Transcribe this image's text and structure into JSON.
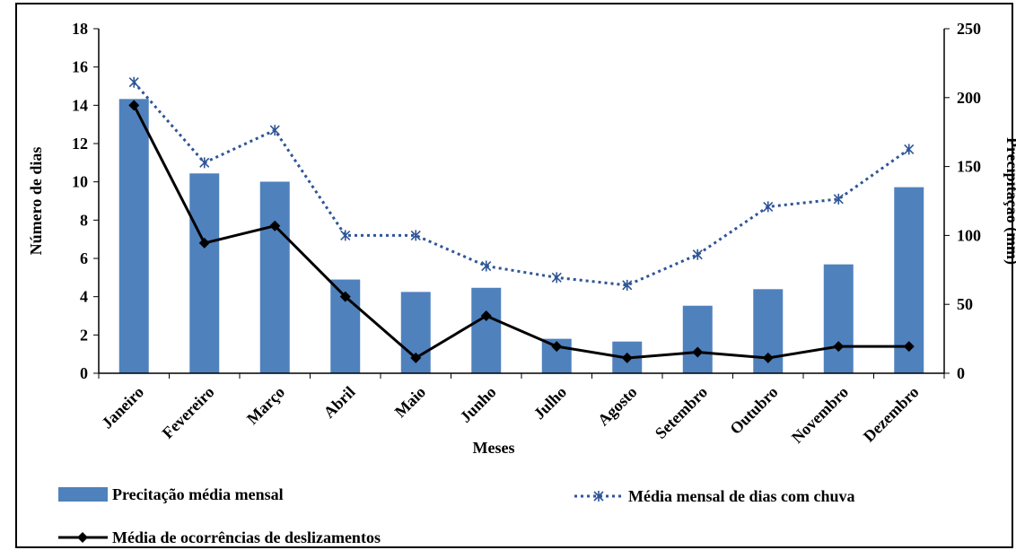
{
  "chart_data": {
    "type": "bar-line",
    "categories": [
      "Janeiro",
      "Fevereiro",
      "Março",
      "Abril",
      "Maio",
      "Junho",
      "Julho",
      "Agosto",
      "Setembro",
      "Outubro",
      "Novembro",
      "Dezembro"
    ],
    "x_label": "Meses",
    "y_label": "Número de dias",
    "y2_label": "Precipitação (mm)",
    "ylim": [
      0,
      18
    ],
    "yticks": [
      0,
      2,
      4,
      6,
      8,
      10,
      12,
      14,
      16,
      18
    ],
    "y2lim": [
      0,
      250
    ],
    "y2ticks": [
      0,
      50,
      100,
      150,
      200,
      250
    ],
    "series": [
      {
        "name": "Precitação média mensal",
        "type": "bar",
        "axis": "y2",
        "color": "#4f81bd",
        "values": [
          199,
          145,
          139,
          68,
          59,
          62,
          25,
          23,
          49,
          61,
          79,
          135
        ]
      },
      {
        "name": "Média mensal de dias com chuva",
        "type": "dotted-line",
        "axis": "y",
        "color": "#2e5597",
        "values": [
          15.2,
          11.0,
          12.7,
          7.2,
          7.2,
          5.6,
          5.0,
          4.6,
          6.2,
          8.7,
          9.1,
          11.7
        ]
      },
      {
        "name": "Média de ocorrências de deslizamentos",
        "type": "line",
        "axis": "y",
        "color": "#000000",
        "values": [
          14.0,
          6.8,
          7.7,
          4.0,
          0.8,
          3.0,
          1.4,
          0.8,
          1.1,
          0.8,
          1.4,
          1.4
        ]
      }
    ]
  }
}
